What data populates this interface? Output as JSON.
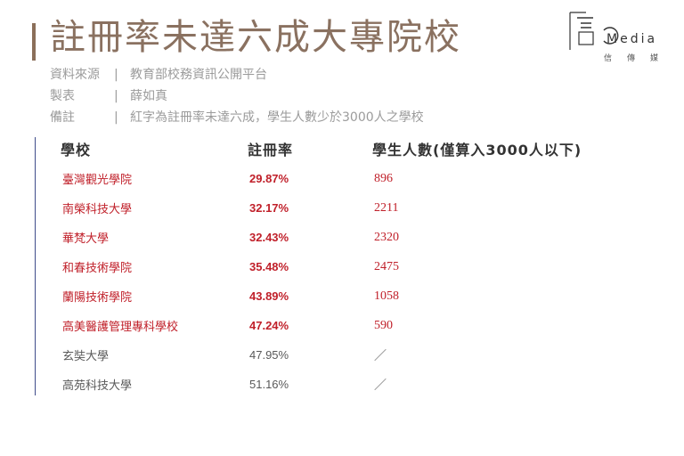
{
  "title": "註冊率未達六成大專院校",
  "meta": [
    {
      "key": "資料來源",
      "sep": "|",
      "value": "教育部校務資訊公開平台"
    },
    {
      "key": "製表",
      "sep": "|",
      "value": "薛如真"
    },
    {
      "key": "備註",
      "sep": "|",
      "value": "紅字為註冊率未達六成，學生人數少於3000人之學校"
    }
  ],
  "logo": {
    "mark": "Media",
    "sub": "信傳媒"
  },
  "table": {
    "headers": [
      "學校",
      "註冊率",
      "學生人數(僅算入3000人以下)"
    ],
    "rows": [
      {
        "school": "臺灣觀光學院",
        "rate": "29.87%",
        "students": "896",
        "style": "red"
      },
      {
        "school": "南榮科技大學",
        "rate": "32.17%",
        "students": "2211",
        "style": "red"
      },
      {
        "school": "華梵大學",
        "rate": "32.43%",
        "students": "2320",
        "style": "red"
      },
      {
        "school": "和春技術學院",
        "rate": "35.48%",
        "students": "2475",
        "style": "red"
      },
      {
        "school": "蘭陽技術學院",
        "rate": "43.89%",
        "students": "1058",
        "style": "red"
      },
      {
        "school": "高美醫護管理專科學校",
        "rate": "47.24%",
        "students": "590",
        "style": "red"
      },
      {
        "school": "玄奘大學",
        "rate": "47.95%",
        "students": "／",
        "style": "gray"
      },
      {
        "school": "高苑科技大學",
        "rate": "51.16%",
        "students": "／",
        "style": "gray"
      }
    ]
  },
  "colors": {
    "title": "#8a7160",
    "red": "#c0202a",
    "gray": "#595959",
    "accent_line": "#3f4c8a"
  }
}
